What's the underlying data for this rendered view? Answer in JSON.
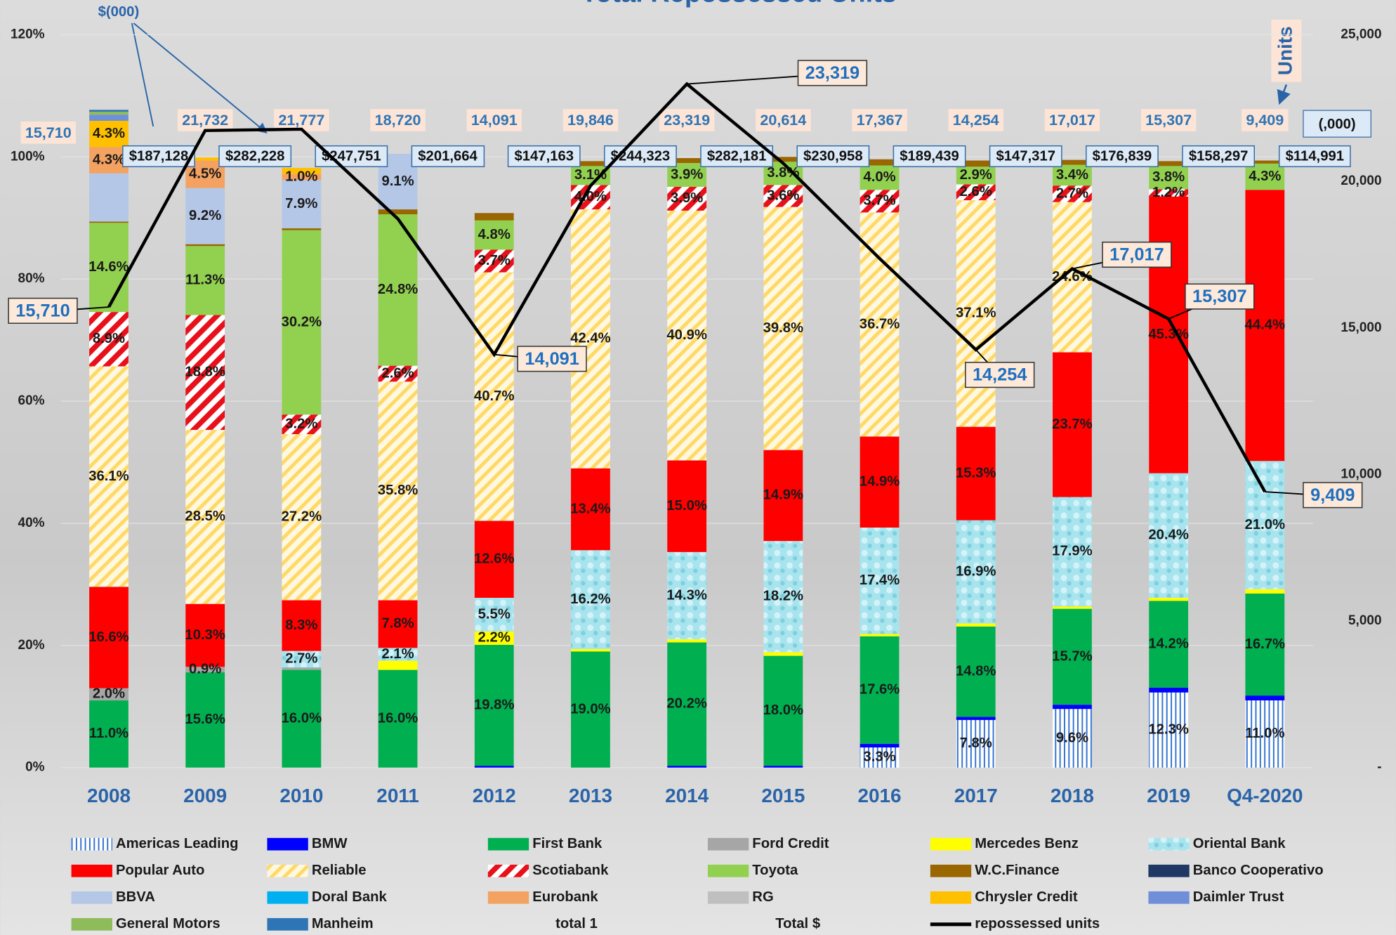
{
  "chart_data": {
    "type": "bar",
    "stacked": true,
    "title": "Total Repossessed Units",
    "annotations": [
      "$(000)",
      "Units",
      "(,000)"
    ],
    "categories": [
      "2008",
      "2009",
      "2010",
      "2011",
      "2012",
      "2013",
      "2014",
      "2015",
      "2016",
      "2017",
      "2018",
      "2019",
      "Q4-2020"
    ],
    "ylim": [
      0,
      120
    ],
    "yticks": [
      {
        "value": 0,
        "label": "0%"
      },
      {
        "value": 20,
        "label": "20%"
      },
      {
        "value": 40,
        "label": "40%"
      },
      {
        "value": 60,
        "label": "60%"
      },
      {
        "value": 80,
        "label": "80%"
      },
      {
        "value": 100,
        "label": "100%"
      },
      {
        "value": 120,
        "label": "120%"
      }
    ],
    "y2lim": [
      0,
      25000
    ],
    "y2ticks": [
      {
        "value": 0,
        "label": "-"
      },
      {
        "value": 5000,
        "label": "5,000"
      },
      {
        "value": 10000,
        "label": "10,000"
      },
      {
        "value": 15000,
        "label": "15,000"
      },
      {
        "value": 20000,
        "label": "20,000"
      },
      {
        "value": 25000,
        "label": "25,000"
      }
    ],
    "grid": true,
    "legend": "bottom",
    "series": [
      {
        "name": "Americas Leading",
        "color": "#2e6fd0",
        "pattern": "vstripes",
        "values": [
          null,
          null,
          null,
          null,
          null,
          null,
          null,
          null,
          3.3,
          7.8,
          9.6,
          12.3,
          11.0
        ],
        "value_labels": [
          null,
          null,
          null,
          null,
          null,
          null,
          null,
          null,
          "3.3%",
          "7.8%",
          "9.6%",
          "12.3%",
          "11.0%"
        ]
      },
      {
        "name": "BMW",
        "color": "#0000ff",
        "values": [
          null,
          null,
          null,
          null,
          0.3,
          null,
          0.3,
          0.3,
          0.6,
          0.5,
          0.7,
          0.8,
          0.8
        ]
      },
      {
        "name": "First Bank",
        "color": "#00b050",
        "values": [
          11.0,
          15.6,
          16.0,
          16.0,
          19.8,
          19.0,
          20.2,
          18.0,
          17.6,
          14.8,
          15.7,
          14.2,
          16.7
        ],
        "value_labels": [
          "11.0%",
          "15.6%",
          "16.0%",
          "16.0%",
          "19.8%",
          "19.0%",
          "20.2%",
          "18.0%",
          "17.6%",
          "14.8%",
          "15.7%",
          "14.2%",
          "16.7%"
        ]
      },
      {
        "name": "Ford Credit",
        "color": "#a6a6a6",
        "values": [
          2.0,
          0.9,
          0.4,
          null,
          null,
          null,
          null,
          null,
          null,
          null,
          null,
          null,
          null
        ],
        "value_labels": [
          "2.0%",
          "0.9%",
          null,
          null,
          null,
          null,
          null,
          null,
          null,
          null,
          null,
          null,
          null
        ]
      },
      {
        "name": "Mercedes Benz",
        "color": "#ffff00",
        "values": [
          null,
          null,
          null,
          1.5,
          2.2,
          0.4,
          0.5,
          0.6,
          0.4,
          0.5,
          0.4,
          0.5,
          0.7
        ],
        "value_labels": [
          null,
          null,
          null,
          null,
          "2.2%",
          null,
          null,
          null,
          null,
          null,
          null,
          null,
          null
        ]
      },
      {
        "name": "Oriental Bank",
        "color": "#a8e4ee",
        "pattern": "bubbles",
        "values": [
          null,
          null,
          2.7,
          2.1,
          5.5,
          16.2,
          14.3,
          18.2,
          17.4,
          16.9,
          17.9,
          20.4,
          21.0
        ],
        "value_labels": [
          null,
          null,
          "2.7%",
          "2.1%",
          "5.5%",
          "16.2%",
          "14.3%",
          "18.2%",
          "17.4%",
          "16.9%",
          "17.9%",
          "20.4%",
          "21.0%"
        ]
      },
      {
        "name": "Popular Auto",
        "color": "#ff0000",
        "values": [
          16.6,
          10.3,
          8.3,
          7.8,
          12.6,
          13.4,
          15.0,
          14.9,
          14.9,
          15.3,
          23.7,
          45.3,
          44.4
        ],
        "value_labels": [
          "16.6%",
          "10.3%",
          "8.3%",
          "7.8%",
          "12.6%",
          "13.4%",
          "15.0%",
          "14.9%",
          "14.9%",
          "15.3%",
          "23.7%",
          "45.3%",
          "44.4%"
        ]
      },
      {
        "name": "Reliable",
        "color": "#ffd966",
        "pattern": "hatch",
        "values": [
          36.1,
          28.5,
          27.2,
          35.8,
          40.7,
          42.4,
          40.9,
          39.8,
          36.7,
          37.1,
          24.6,
          null,
          null
        ],
        "value_labels": [
          "36.1%",
          "28.5%",
          "27.2%",
          "35.8%",
          "40.7%",
          "42.4%",
          "40.9%",
          "39.8%",
          "36.7%",
          "37.1%",
          "24.6%",
          null,
          null
        ]
      },
      {
        "name": "Scotiabank",
        "color": "#e8101a",
        "pattern": "redhatch",
        "values": [
          8.9,
          18.8,
          3.2,
          2.6,
          3.7,
          4.0,
          3.9,
          3.6,
          3.7,
          2.6,
          2.7,
          1.2,
          null
        ],
        "value_labels": [
          "8.9%",
          "18.8%",
          "3.2%",
          "2.6%",
          "3.7%",
          "4.0%",
          "3.9%",
          "3.6%",
          "3.7%",
          "2.6%",
          "2.7%",
          "1.2%",
          null
        ]
      },
      {
        "name": "Toyota",
        "color": "#92d050",
        "values": [
          14.6,
          11.3,
          30.2,
          24.8,
          4.8,
          3.1,
          3.9,
          3.8,
          4.0,
          2.9,
          3.4,
          3.8,
          4.3
        ],
        "value_labels": [
          "14.6%",
          "11.3%",
          "30.2%",
          "24.8%",
          "4.8%",
          "3.1%",
          "3.9%",
          "3.8%",
          "4.0%",
          "2.9%",
          "3.4%",
          "3.8%",
          "4.3%"
        ]
      },
      {
        "name": "W.C.Finance",
        "color": "#996600",
        "values": [
          0.2,
          0.3,
          0.3,
          0.8,
          1.2,
          0.8,
          0.8,
          0.8,
          1.0,
          1.0,
          0.8,
          0.8,
          0.5
        ]
      },
      {
        "name": "Banco Cooperativo",
        "color": "#1f3864",
        "values": [
          null,
          null,
          null,
          null,
          null,
          null,
          null,
          null,
          null,
          null,
          null,
          null,
          null
        ]
      },
      {
        "name": "BBVA",
        "color": "#b4c7e7",
        "values": [
          7.9,
          9.2,
          7.9,
          9.1,
          null,
          null,
          null,
          null,
          null,
          null,
          null,
          null,
          null
        ],
        "value_labels": [
          null,
          "9.2%",
          "7.9%",
          "9.1%",
          null,
          null,
          null,
          null,
          null,
          null,
          null,
          null,
          null
        ]
      },
      {
        "name": "Doral Bank",
        "color": "#00b0f0",
        "values": [
          null,
          null,
          null,
          null,
          null,
          null,
          null,
          null,
          null,
          null,
          null,
          null,
          null
        ]
      },
      {
        "name": "Eurobank",
        "color": "#f4a261",
        "values": [
          4.3,
          4.5,
          1.0,
          null,
          null,
          null,
          null,
          null,
          null,
          null,
          null,
          null,
          null
        ],
        "value_labels": [
          "4.3%",
          "4.5%",
          "1.0%",
          null,
          null,
          null,
          null,
          null,
          null,
          null,
          null,
          null,
          null
        ]
      },
      {
        "name": "RG",
        "color": "#bfbfbf",
        "values": [
          null,
          null,
          null,
          null,
          null,
          null,
          null,
          null,
          null,
          null,
          null,
          null,
          null
        ]
      },
      {
        "name": "Chrysler Credit",
        "color": "#ffc000",
        "values": [
          4.3,
          0.5,
          1.0,
          null,
          null,
          null,
          null,
          null,
          null,
          null,
          null,
          null,
          null
        ],
        "value_labels": [
          "4.3%",
          null,
          null,
          null,
          null,
          null,
          null,
          null,
          null,
          null,
          null,
          null,
          null
        ]
      },
      {
        "name": "Daimler Trust",
        "color": "#6f8fd8",
        "values": [
          1.0,
          null,
          null,
          null,
          null,
          null,
          null,
          null,
          null,
          null,
          null,
          null,
          null
        ]
      },
      {
        "name": "General Motors",
        "color": "#8fbc5a",
        "values": [
          0.5,
          null,
          null,
          null,
          null,
          null,
          null,
          null,
          null,
          null,
          null,
          null,
          null
        ]
      },
      {
        "name": "Manheim",
        "color": "#2e75b6",
        "values": [
          0.3,
          null,
          null,
          null,
          null,
          null,
          null,
          null,
          null,
          null,
          null,
          null,
          null
        ]
      },
      {
        "name": "total 1",
        "type": "label",
        "values": [
          15710,
          21732,
          21777,
          18720,
          14091,
          19846,
          23319,
          20614,
          17367,
          14254,
          17017,
          15307,
          9409
        ],
        "value_labels": [
          "15,710",
          "21,732",
          "21,777",
          "18,720",
          "14,091",
          "19,846",
          "23,319",
          "20,614",
          "17,367",
          "14,254",
          "17,017",
          "15,307",
          "9,409"
        ]
      },
      {
        "name": "Total $",
        "type": "label",
        "values": [
          187128,
          282228,
          247751,
          201664,
          147163,
          244323,
          282181,
          230958,
          189439,
          147317,
          176839,
          158297,
          114991
        ],
        "value_labels": [
          "$187,128",
          "$282,228",
          "$247,751",
          "$201,664",
          "$147,163",
          "$244,323",
          "$282,181",
          "$230,958",
          "$189,439",
          "$147,317",
          "$176,839",
          "$158,297",
          "$114,991"
        ]
      },
      {
        "name": "repossessed units",
        "type": "line",
        "axis": "y2",
        "color": "#000000",
        "values": [
          15710,
          21732,
          21777,
          18720,
          14091,
          19846,
          23319,
          20614,
          17367,
          14254,
          17017,
          15307,
          9409
        ],
        "value_labels": [
          "15,710",
          null,
          null,
          null,
          "14,091",
          null,
          "23,319",
          null,
          null,
          "14,254",
          "17,017",
          "15,307",
          "9,409"
        ]
      }
    ]
  }
}
